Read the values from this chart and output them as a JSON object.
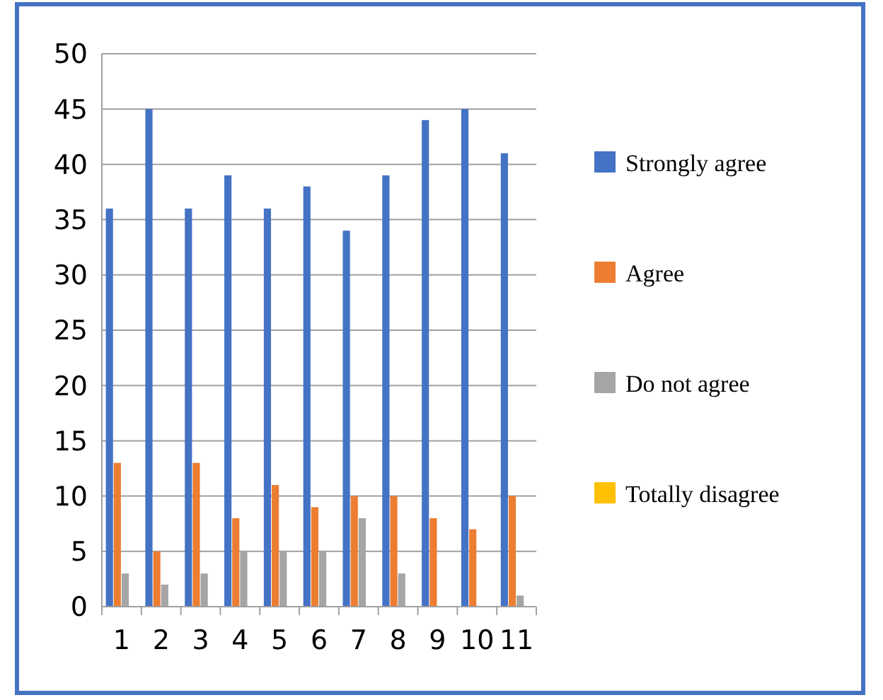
{
  "chart_data": {
    "type": "bar",
    "categories": [
      "1",
      "2",
      "3",
      "4",
      "5",
      "6",
      "7",
      "8",
      "9",
      "10",
      "11"
    ],
    "series": [
      {
        "name": "Strongly agree",
        "color": "#4472c4",
        "values": [
          36,
          45,
          36,
          39,
          36,
          38,
          34,
          39,
          44,
          45,
          41
        ]
      },
      {
        "name": "Agree",
        "color": "#ed7d31",
        "values": [
          13,
          5,
          13,
          8,
          11,
          9,
          10,
          10,
          8,
          7,
          10
        ]
      },
      {
        "name": "Do not agree",
        "color": "#a5a5a5",
        "values": [
          3,
          2,
          3,
          5,
          5,
          5,
          8,
          3,
          0,
          0,
          1
        ]
      },
      {
        "name": "Totally disagree",
        "color": "#ffc000",
        "values": [
          0,
          0,
          0,
          0,
          0,
          0,
          0,
          0,
          0,
          0,
          0
        ]
      }
    ],
    "ylim": [
      0,
      50
    ],
    "yticks": [
      0,
      5,
      10,
      15,
      20,
      25,
      30,
      35,
      40,
      45,
      50
    ],
    "grid": "y",
    "legend": "right"
  }
}
